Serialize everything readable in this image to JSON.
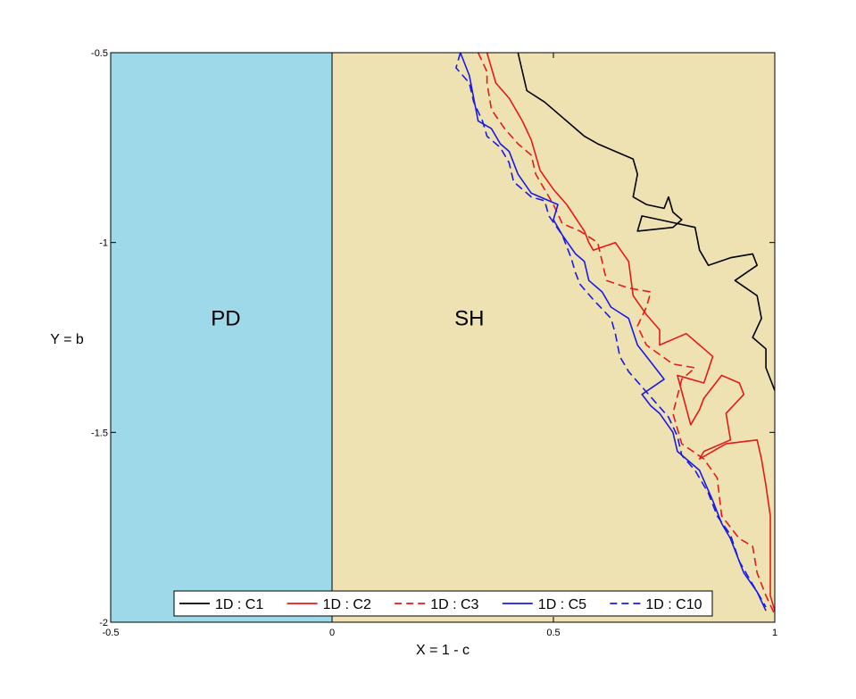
{
  "chart_data": {
    "type": "line",
    "title": "",
    "xlabel": "X = 1 - c",
    "ylabel": "Y = b",
    "xlim": [
      -0.5,
      1
    ],
    "ylim": [
      -2,
      -0.5
    ],
    "x_ticks": [
      -0.5,
      0,
      0.5,
      1
    ],
    "x_tick_labels": [
      "-0.5",
      "0",
      "0.5",
      "1"
    ],
    "y_ticks": [
      -2,
      -1.5,
      -1,
      -0.5
    ],
    "y_tick_labels": [
      "-2",
      "-1.5",
      "-1",
      "-0.5"
    ],
    "grid": false,
    "legend_location": "bottom-center",
    "regions": [
      {
        "label": "PD",
        "x_from": -0.5,
        "x_to": 0,
        "color": "#9dd9e8",
        "label_at": [
          -0.24,
          -1.2
        ]
      },
      {
        "label": "SH",
        "x_from": 0,
        "x_to": 1,
        "color": "#eee2b2",
        "label_at": [
          0.31,
          -1.2
        ]
      }
    ],
    "series": [
      {
        "name": "1D : C1",
        "color": "#000000",
        "dash": "solid",
        "points": [
          [
            0.42,
            -0.5
          ],
          [
            0.44,
            -0.6
          ],
          [
            0.48,
            -0.63
          ],
          [
            0.52,
            -0.67
          ],
          [
            0.57,
            -0.72
          ],
          [
            0.6,
            -0.74
          ],
          [
            0.64,
            -0.76
          ],
          [
            0.68,
            -0.78
          ],
          [
            0.69,
            -0.82
          ],
          [
            0.68,
            -0.88
          ],
          [
            0.71,
            -0.9
          ],
          [
            0.75,
            -0.91
          ],
          [
            0.76,
            -0.88
          ],
          [
            0.77,
            -0.92
          ],
          [
            0.79,
            -0.94
          ],
          [
            0.77,
            -0.96
          ],
          [
            0.69,
            -0.97
          ],
          [
            0.7,
            -0.93
          ],
          [
            0.74,
            -0.94
          ],
          [
            0.82,
            -0.96
          ],
          [
            0.83,
            -1.02
          ],
          [
            0.85,
            -1.06
          ],
          [
            0.9,
            -1.04
          ],
          [
            0.95,
            -1.03
          ],
          [
            0.96,
            -1.06
          ],
          [
            0.91,
            -1.1
          ],
          [
            0.96,
            -1.14
          ],
          [
            0.97,
            -1.2
          ],
          [
            0.95,
            -1.25
          ],
          [
            0.98,
            -1.28
          ],
          [
            0.98,
            -1.33
          ],
          [
            1.0,
            -1.39
          ]
        ]
      },
      {
        "name": "1D : C2",
        "color": "#e31a1a",
        "dash": "solid",
        "points": [
          [
            0.35,
            -0.5
          ],
          [
            0.37,
            -0.58
          ],
          [
            0.4,
            -0.62
          ],
          [
            0.43,
            -0.68
          ],
          [
            0.45,
            -0.73
          ],
          [
            0.47,
            -0.81
          ],
          [
            0.5,
            -0.86
          ],
          [
            0.53,
            -0.9
          ],
          [
            0.57,
            -0.97
          ],
          [
            0.58,
            -1.0
          ],
          [
            0.59,
            -1.02
          ],
          [
            0.64,
            -1.0
          ],
          [
            0.67,
            -1.05
          ],
          [
            0.68,
            -1.14
          ],
          [
            0.71,
            -1.19
          ],
          [
            0.74,
            -1.23
          ],
          [
            0.74,
            -1.27
          ],
          [
            0.8,
            -1.24
          ],
          [
            0.86,
            -1.3
          ],
          [
            0.84,
            -1.37
          ],
          [
            0.78,
            -1.35
          ],
          [
            0.81,
            -1.48
          ],
          [
            0.83,
            -1.44
          ],
          [
            0.84,
            -1.41
          ],
          [
            0.86,
            -1.38
          ],
          [
            0.88,
            -1.35
          ],
          [
            0.92,
            -1.37
          ],
          [
            0.93,
            -1.4
          ],
          [
            0.89,
            -1.45
          ],
          [
            0.9,
            -1.52
          ],
          [
            0.84,
            -1.55
          ],
          [
            0.83,
            -1.57
          ],
          [
            0.89,
            -1.53
          ],
          [
            0.96,
            -1.52
          ],
          [
            0.97,
            -1.57
          ],
          [
            0.98,
            -1.64
          ],
          [
            0.99,
            -1.72
          ],
          [
            0.99,
            -1.82
          ],
          [
            0.99,
            -1.93
          ],
          [
            1.0,
            -1.97
          ]
        ]
      },
      {
        "name": "1D : C3",
        "color": "#e31a1a",
        "dash": "dashed",
        "points": [
          [
            0.33,
            -0.5
          ],
          [
            0.35,
            -0.55
          ],
          [
            0.35,
            -0.58
          ],
          [
            0.36,
            -0.65
          ],
          [
            0.39,
            -0.7
          ],
          [
            0.42,
            -0.74
          ],
          [
            0.45,
            -0.77
          ],
          [
            0.46,
            -0.82
          ],
          [
            0.48,
            -0.86
          ],
          [
            0.5,
            -0.9
          ],
          [
            0.52,
            -0.95
          ],
          [
            0.56,
            -0.97
          ],
          [
            0.6,
            -1.0
          ],
          [
            0.61,
            -1.05
          ],
          [
            0.62,
            -1.1
          ],
          [
            0.67,
            -1.12
          ],
          [
            0.72,
            -1.13
          ],
          [
            0.71,
            -1.17
          ],
          [
            0.69,
            -1.22
          ],
          [
            0.71,
            -1.27
          ],
          [
            0.77,
            -1.32
          ],
          [
            0.82,
            -1.33
          ],
          [
            0.79,
            -1.36
          ],
          [
            0.77,
            -1.45
          ],
          [
            0.79,
            -1.53
          ],
          [
            0.84,
            -1.57
          ],
          [
            0.87,
            -1.62
          ],
          [
            0.88,
            -1.72
          ],
          [
            0.92,
            -1.78
          ],
          [
            0.95,
            -1.8
          ],
          [
            0.96,
            -1.87
          ],
          [
            0.98,
            -1.93
          ],
          [
            1.0,
            -1.98
          ]
        ]
      },
      {
        "name": "1D : C5",
        "color": "#1a1ae3",
        "dash": "solid",
        "points": [
          [
            0.29,
            -0.5
          ],
          [
            0.31,
            -0.56
          ],
          [
            0.32,
            -0.62
          ],
          [
            0.33,
            -0.68
          ],
          [
            0.36,
            -0.7
          ],
          [
            0.38,
            -0.74
          ],
          [
            0.4,
            -0.76
          ],
          [
            0.42,
            -0.82
          ],
          [
            0.45,
            -0.87
          ],
          [
            0.49,
            -0.89
          ],
          [
            0.51,
            -0.9
          ],
          [
            0.5,
            -0.94
          ],
          [
            0.52,
            -0.98
          ],
          [
            0.55,
            -1.03
          ],
          [
            0.57,
            -1.05
          ],
          [
            0.58,
            -1.1
          ],
          [
            0.61,
            -1.13
          ],
          [
            0.63,
            -1.17
          ],
          [
            0.67,
            -1.2
          ],
          [
            0.69,
            -1.27
          ],
          [
            0.71,
            -1.3
          ],
          [
            0.75,
            -1.36
          ],
          [
            0.7,
            -1.4
          ],
          [
            0.72,
            -1.43
          ],
          [
            0.74,
            -1.45
          ],
          [
            0.77,
            -1.5
          ],
          [
            0.78,
            -1.55
          ],
          [
            0.83,
            -1.6
          ],
          [
            0.86,
            -1.68
          ],
          [
            0.88,
            -1.74
          ],
          [
            0.9,
            -1.78
          ],
          [
            0.93,
            -1.87
          ],
          [
            0.96,
            -1.92
          ],
          [
            0.98,
            -1.97
          ]
        ]
      },
      {
        "name": "1D : C10",
        "color": "#1a1ae3",
        "dash": "dashed",
        "points": [
          [
            0.29,
            -0.5
          ],
          [
            0.28,
            -0.54
          ],
          [
            0.31,
            -0.58
          ],
          [
            0.32,
            -0.63
          ],
          [
            0.34,
            -0.68
          ],
          [
            0.35,
            -0.72
          ],
          [
            0.38,
            -0.75
          ],
          [
            0.4,
            -0.79
          ],
          [
            0.41,
            -0.84
          ],
          [
            0.45,
            -0.88
          ],
          [
            0.48,
            -0.89
          ],
          [
            0.49,
            -0.93
          ],
          [
            0.52,
            -0.98
          ],
          [
            0.54,
            -1.04
          ],
          [
            0.55,
            -1.08
          ],
          [
            0.56,
            -1.11
          ],
          [
            0.59,
            -1.15
          ],
          [
            0.63,
            -1.2
          ],
          [
            0.64,
            -1.24
          ],
          [
            0.65,
            -1.3
          ],
          [
            0.67,
            -1.34
          ],
          [
            0.7,
            -1.38
          ],
          [
            0.73,
            -1.42
          ],
          [
            0.76,
            -1.46
          ],
          [
            0.78,
            -1.51
          ],
          [
            0.79,
            -1.56
          ],
          [
            0.82,
            -1.6
          ],
          [
            0.85,
            -1.66
          ],
          [
            0.87,
            -1.72
          ],
          [
            0.9,
            -1.77
          ],
          [
            0.92,
            -1.84
          ],
          [
            0.95,
            -1.9
          ],
          [
            0.98,
            -1.96
          ]
        ]
      }
    ]
  }
}
